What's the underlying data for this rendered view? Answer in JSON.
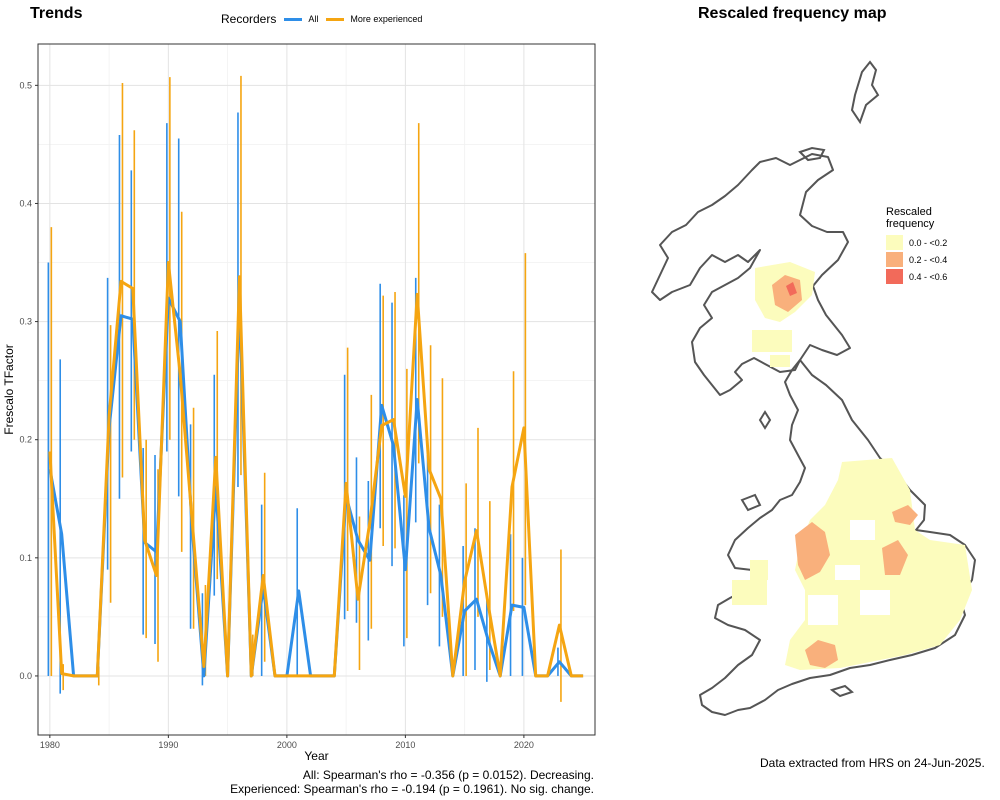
{
  "left_title": "Trends",
  "right_title": "Rescaled frequency map",
  "legend": {
    "title": "Recorders",
    "items": [
      {
        "label": "All",
        "color": "#2e8ee8"
      },
      {
        "label": "More experienced",
        "color": "#f5a511"
      }
    ]
  },
  "captions": {
    "all": "All: Spearman's rho = -0.356 (p = 0.0152). Decreasing.",
    "experienced": "Experienced: Spearman's rho = -0.194 (p = 0.1961). No sig. change.",
    "source": "Data extracted from HRS on 24-Jun-2025."
  },
  "map_legend": {
    "title_line1": "Rescaled",
    "title_line2": "frequency",
    "items": [
      {
        "label": "0.0 - <0.2",
        "color": "#fcfcbd"
      },
      {
        "label": "0.2 - <0.4",
        "color": "#f9b07c"
      },
      {
        "label": "0.4 - <0.6",
        "color": "#f26a5a"
      }
    ]
  },
  "chart_data": [
    {
      "type": "line",
      "title": "Trends",
      "xlabel": "Year",
      "ylabel": "Frescalo TFactor",
      "xlim": [
        1979,
        2026
      ],
      "ylim": [
        -0.05,
        0.535
      ],
      "x_ticks": [
        1980,
        1990,
        2000,
        2010,
        2020
      ],
      "y_ticks": [
        0.0,
        0.1,
        0.2,
        0.3,
        0.4,
        0.5
      ],
      "y_tick_labels": [
        "0.0",
        "0.1",
        "0.2",
        "0.3",
        "0.4",
        "0.5"
      ],
      "grid": true,
      "legend_position": "top",
      "series": [
        {
          "name": "All",
          "color": "#2e8ee8",
          "points": [
            {
              "x": 1980,
              "y": 0.175,
              "lo": 0.0,
              "hi": 0.35
            },
            {
              "x": 1981,
              "y": 0.12,
              "lo": -0.015,
              "hi": 0.268
            },
            {
              "x": 1982,
              "y": 0.0
            },
            {
              "x": 1983,
              "y": 0.0
            },
            {
              "x": 1984,
              "y": 0.0
            },
            {
              "x": 1985,
              "y": 0.21,
              "lo": 0.09,
              "hi": 0.337
            },
            {
              "x": 1986,
              "y": 0.305,
              "lo": 0.15,
              "hi": 0.458
            },
            {
              "x": 1987,
              "y": 0.302,
              "lo": 0.19,
              "hi": 0.428
            },
            {
              "x": 1988,
              "y": 0.113,
              "lo": 0.035,
              "hi": 0.193
            },
            {
              "x": 1989,
              "y": 0.105,
              "lo": 0.027,
              "hi": 0.187
            },
            {
              "x": 1990,
              "y": 0.32,
              "lo": 0.19,
              "hi": 0.468
            },
            {
              "x": 1991,
              "y": 0.3,
              "lo": 0.152,
              "hi": 0.455
            },
            {
              "x": 1992,
              "y": 0.125,
              "lo": 0.04,
              "hi": 0.213
            },
            {
              "x": 1993,
              "y": 0.0,
              "lo": -0.008,
              "hi": 0.07
            },
            {
              "x": 1994,
              "y": 0.16,
              "lo": 0.068,
              "hi": 0.255
            },
            {
              "x": 1995,
              "y": 0.0
            },
            {
              "x": 1996,
              "y": 0.318,
              "lo": 0.16,
              "hi": 0.477
            },
            {
              "x": 1997,
              "y": 0.0
            },
            {
              "x": 1998,
              "y": 0.075,
              "lo": 0.0,
              "hi": 0.145
            },
            {
              "x": 1999,
              "y": 0.0
            },
            {
              "x": 2000,
              "y": 0.0
            },
            {
              "x": 2001,
              "y": 0.072,
              "lo": 0.0,
              "hi": 0.142
            },
            {
              "x": 2002,
              "y": 0.0
            },
            {
              "x": 2003,
              "y": 0.0
            },
            {
              "x": 2004,
              "y": 0.0
            },
            {
              "x": 2005,
              "y": 0.152,
              "lo": 0.048,
              "hi": 0.255
            },
            {
              "x": 2006,
              "y": 0.115,
              "lo": 0.045,
              "hi": 0.185
            },
            {
              "x": 2007,
              "y": 0.098,
              "lo": 0.03,
              "hi": 0.165
            },
            {
              "x": 2008,
              "y": 0.229,
              "lo": 0.125,
              "hi": 0.332
            },
            {
              "x": 2009,
              "y": 0.195,
              "lo": 0.093,
              "hi": 0.316
            },
            {
              "x": 2010,
              "y": 0.09,
              "lo": 0.025,
              "hi": 0.153
            },
            {
              "x": 2011,
              "y": 0.234,
              "lo": 0.13,
              "hi": 0.337
            },
            {
              "x": 2012,
              "y": 0.125,
              "lo": 0.06,
              "hi": 0.187
            },
            {
              "x": 2013,
              "y": 0.085,
              "lo": 0.025,
              "hi": 0.145
            },
            {
              "x": 2014,
              "y": 0.0
            },
            {
              "x": 2015,
              "y": 0.055,
              "lo": 0.0,
              "hi": 0.11
            },
            {
              "x": 2016,
              "y": 0.065,
              "lo": 0.005,
              "hi": 0.125
            },
            {
              "x": 2017,
              "y": 0.03,
              "lo": -0.005,
              "hi": 0.07
            },
            {
              "x": 2018,
              "y": 0.0
            },
            {
              "x": 2019,
              "y": 0.06,
              "lo": 0.0,
              "hi": 0.12
            },
            {
              "x": 2020,
              "y": 0.058,
              "lo": 0.0,
              "hi": 0.1
            },
            {
              "x": 2021,
              "y": 0.0
            },
            {
              "x": 2022,
              "y": 0.0
            },
            {
              "x": 2023,
              "y": 0.012,
              "lo": 0.0,
              "hi": 0.024
            },
            {
              "x": 2024,
              "y": 0.0
            },
            {
              "x": 2025,
              "y": 0.0
            }
          ]
        },
        {
          "name": "More experienced",
          "color": "#f5a511",
          "points": [
            {
              "x": 1980,
              "y": 0.19,
              "lo": 0.0,
              "hi": 0.38
            },
            {
              "x": 1981,
              "y": 0.002,
              "lo": -0.012,
              "hi": 0.01
            },
            {
              "x": 1982,
              "y": 0.0
            },
            {
              "x": 1983,
              "y": 0.0
            },
            {
              "x": 1984,
              "y": 0.0,
              "lo": -0.008,
              "hi": 0.008
            },
            {
              "x": 1985,
              "y": 0.22,
              "lo": 0.062,
              "hi": 0.297
            },
            {
              "x": 1986,
              "y": 0.334,
              "lo": 0.168,
              "hi": 0.502
            },
            {
              "x": 1987,
              "y": 0.328,
              "lo": 0.2,
              "hi": 0.462
            },
            {
              "x": 1988,
              "y": 0.115,
              "lo": 0.032,
              "hi": 0.2
            },
            {
              "x": 1989,
              "y": 0.085,
              "lo": 0.012,
              "hi": 0.175
            },
            {
              "x": 1990,
              "y": 0.35,
              "lo": 0.2,
              "hi": 0.507
            },
            {
              "x": 1991,
              "y": 0.255,
              "lo": 0.105,
              "hi": 0.393
            },
            {
              "x": 1992,
              "y": 0.132,
              "lo": 0.04,
              "hi": 0.227
            },
            {
              "x": 1993,
              "y": 0.008,
              "lo": 0.0,
              "hi": 0.077
            },
            {
              "x": 1994,
              "y": 0.185,
              "lo": 0.082,
              "hi": 0.292
            },
            {
              "x": 1995,
              "y": 0.0
            },
            {
              "x": 1996,
              "y": 0.338,
              "lo": 0.17,
              "hi": 0.508
            },
            {
              "x": 1997,
              "y": 0.0,
              "lo": 0.0,
              "hi": 0.035
            },
            {
              "x": 1998,
              "y": 0.085,
              "lo": 0.012,
              "hi": 0.172
            },
            {
              "x": 1999,
              "y": 0.0
            },
            {
              "x": 2000,
              "y": 0.0
            },
            {
              "x": 2001,
              "y": 0.0
            },
            {
              "x": 2002,
              "y": 0.0
            },
            {
              "x": 2003,
              "y": 0.0
            },
            {
              "x": 2004,
              "y": 0.0
            },
            {
              "x": 2005,
              "y": 0.163,
              "lo": 0.055,
              "hi": 0.278
            },
            {
              "x": 2006,
              "y": 0.065,
              "lo": 0.005,
              "hi": 0.135
            },
            {
              "x": 2007,
              "y": 0.13,
              "lo": 0.04,
              "hi": 0.238
            },
            {
              "x": 2008,
              "y": 0.212,
              "lo": 0.11,
              "hi": 0.322
            },
            {
              "x": 2009,
              "y": 0.217,
              "lo": 0.108,
              "hi": 0.325
            },
            {
              "x": 2010,
              "y": 0.152,
              "lo": 0.032,
              "hi": 0.26
            },
            {
              "x": 2011,
              "y": 0.323,
              "lo": 0.18,
              "hi": 0.468
            },
            {
              "x": 2012,
              "y": 0.175,
              "lo": 0.07,
              "hi": 0.28
            },
            {
              "x": 2013,
              "y": 0.15,
              "lo": 0.05,
              "hi": 0.252
            },
            {
              "x": 2014,
              "y": 0.0
            },
            {
              "x": 2015,
              "y": 0.08,
              "lo": 0.0,
              "hi": 0.163
            },
            {
              "x": 2016,
              "y": 0.123,
              "lo": 0.05,
              "hi": 0.21
            },
            {
              "x": 2017,
              "y": 0.06,
              "lo": 0.005,
              "hi": 0.148
            },
            {
              "x": 2018,
              "y": 0.0
            },
            {
              "x": 2019,
              "y": 0.16,
              "lo": 0.055,
              "hi": 0.258
            },
            {
              "x": 2020,
              "y": 0.21,
              "lo": 0.06,
              "hi": 0.358
            },
            {
              "x": 2021,
              "y": 0.0
            },
            {
              "x": 2022,
              "y": 0.0
            },
            {
              "x": 2023,
              "y": 0.043,
              "lo": -0.022,
              "hi": 0.107
            },
            {
              "x": 2024,
              "y": 0.0
            },
            {
              "x": 2025,
              "y": 0.0
            }
          ]
        }
      ]
    },
    {
      "type": "heatmap",
      "title": "Rescaled frequency map",
      "legend_title": "Rescaled frequency",
      "classes": [
        "0.0 - <0.2",
        "0.2 - <0.4",
        "0.4 - <0.6"
      ]
    }
  ]
}
